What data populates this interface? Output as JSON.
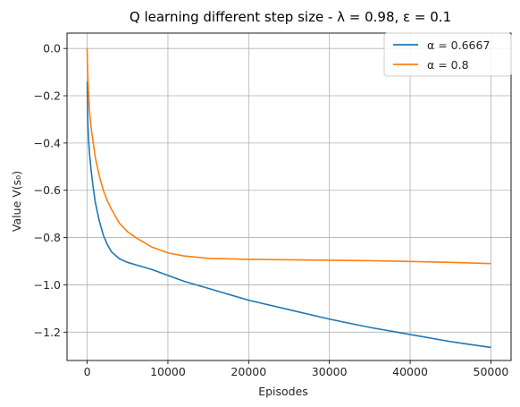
{
  "chart_data": {
    "type": "line",
    "title": "Q learning different step size - λ = 0.98, ε = 0.1",
    "xlabel": "Episodes",
    "ylabel": "Value V(s₀)",
    "xlim": [
      -2500,
      52500
    ],
    "ylim": [
      -1.32,
      0.065
    ],
    "xticks": [
      0,
      10000,
      20000,
      30000,
      40000,
      50000
    ],
    "xtick_labels": [
      "0",
      "10000",
      "20000",
      "30000",
      "40000",
      "50000"
    ],
    "yticks": [
      0.0,
      -0.2,
      -0.4,
      -0.6,
      -0.8,
      -1.0,
      -1.2
    ],
    "ytick_labels": [
      "0.0",
      "−0.2",
      "−0.4",
      "−0.6",
      "−0.8",
      "−1.0",
      "−1.2"
    ],
    "grid": true,
    "legend_position": "top-right",
    "series": [
      {
        "name": "α = 0.6667",
        "color": "#1f77b4",
        "x": [
          0,
          50,
          100,
          200,
          300,
          500,
          750,
          1000,
          1500,
          2000,
          2500,
          3000,
          4000,
          5000,
          6000,
          8000,
          10000,
          12000,
          15000,
          20000,
          25000,
          30000,
          35000,
          40000,
          45000,
          50000
        ],
        "y": [
          -0.14,
          -0.26,
          -0.33,
          -0.4,
          -0.45,
          -0.52,
          -0.59,
          -0.65,
          -0.73,
          -0.79,
          -0.83,
          -0.86,
          -0.89,
          -0.905,
          -0.915,
          -0.935,
          -0.96,
          -0.985,
          -1.015,
          -1.065,
          -1.105,
          -1.145,
          -1.18,
          -1.21,
          -1.24,
          -1.265
        ]
      },
      {
        "name": "α = 0.8",
        "color": "#ff7f0e",
        "x": [
          0,
          50,
          100,
          200,
          300,
          500,
          750,
          1000,
          1500,
          2000,
          2500,
          3000,
          4000,
          5000,
          6000,
          8000,
          10000,
          12000,
          15000,
          20000,
          25000,
          30000,
          35000,
          40000,
          45000,
          50000
        ],
        "y": [
          0.0,
          -0.08,
          -0.14,
          -0.21,
          -0.27,
          -0.34,
          -0.4,
          -0.46,
          -0.54,
          -0.6,
          -0.645,
          -0.68,
          -0.74,
          -0.775,
          -0.8,
          -0.84,
          -0.865,
          -0.878,
          -0.888,
          -0.892,
          -0.894,
          -0.896,
          -0.898,
          -0.901,
          -0.905,
          -0.91
        ]
      }
    ]
  }
}
